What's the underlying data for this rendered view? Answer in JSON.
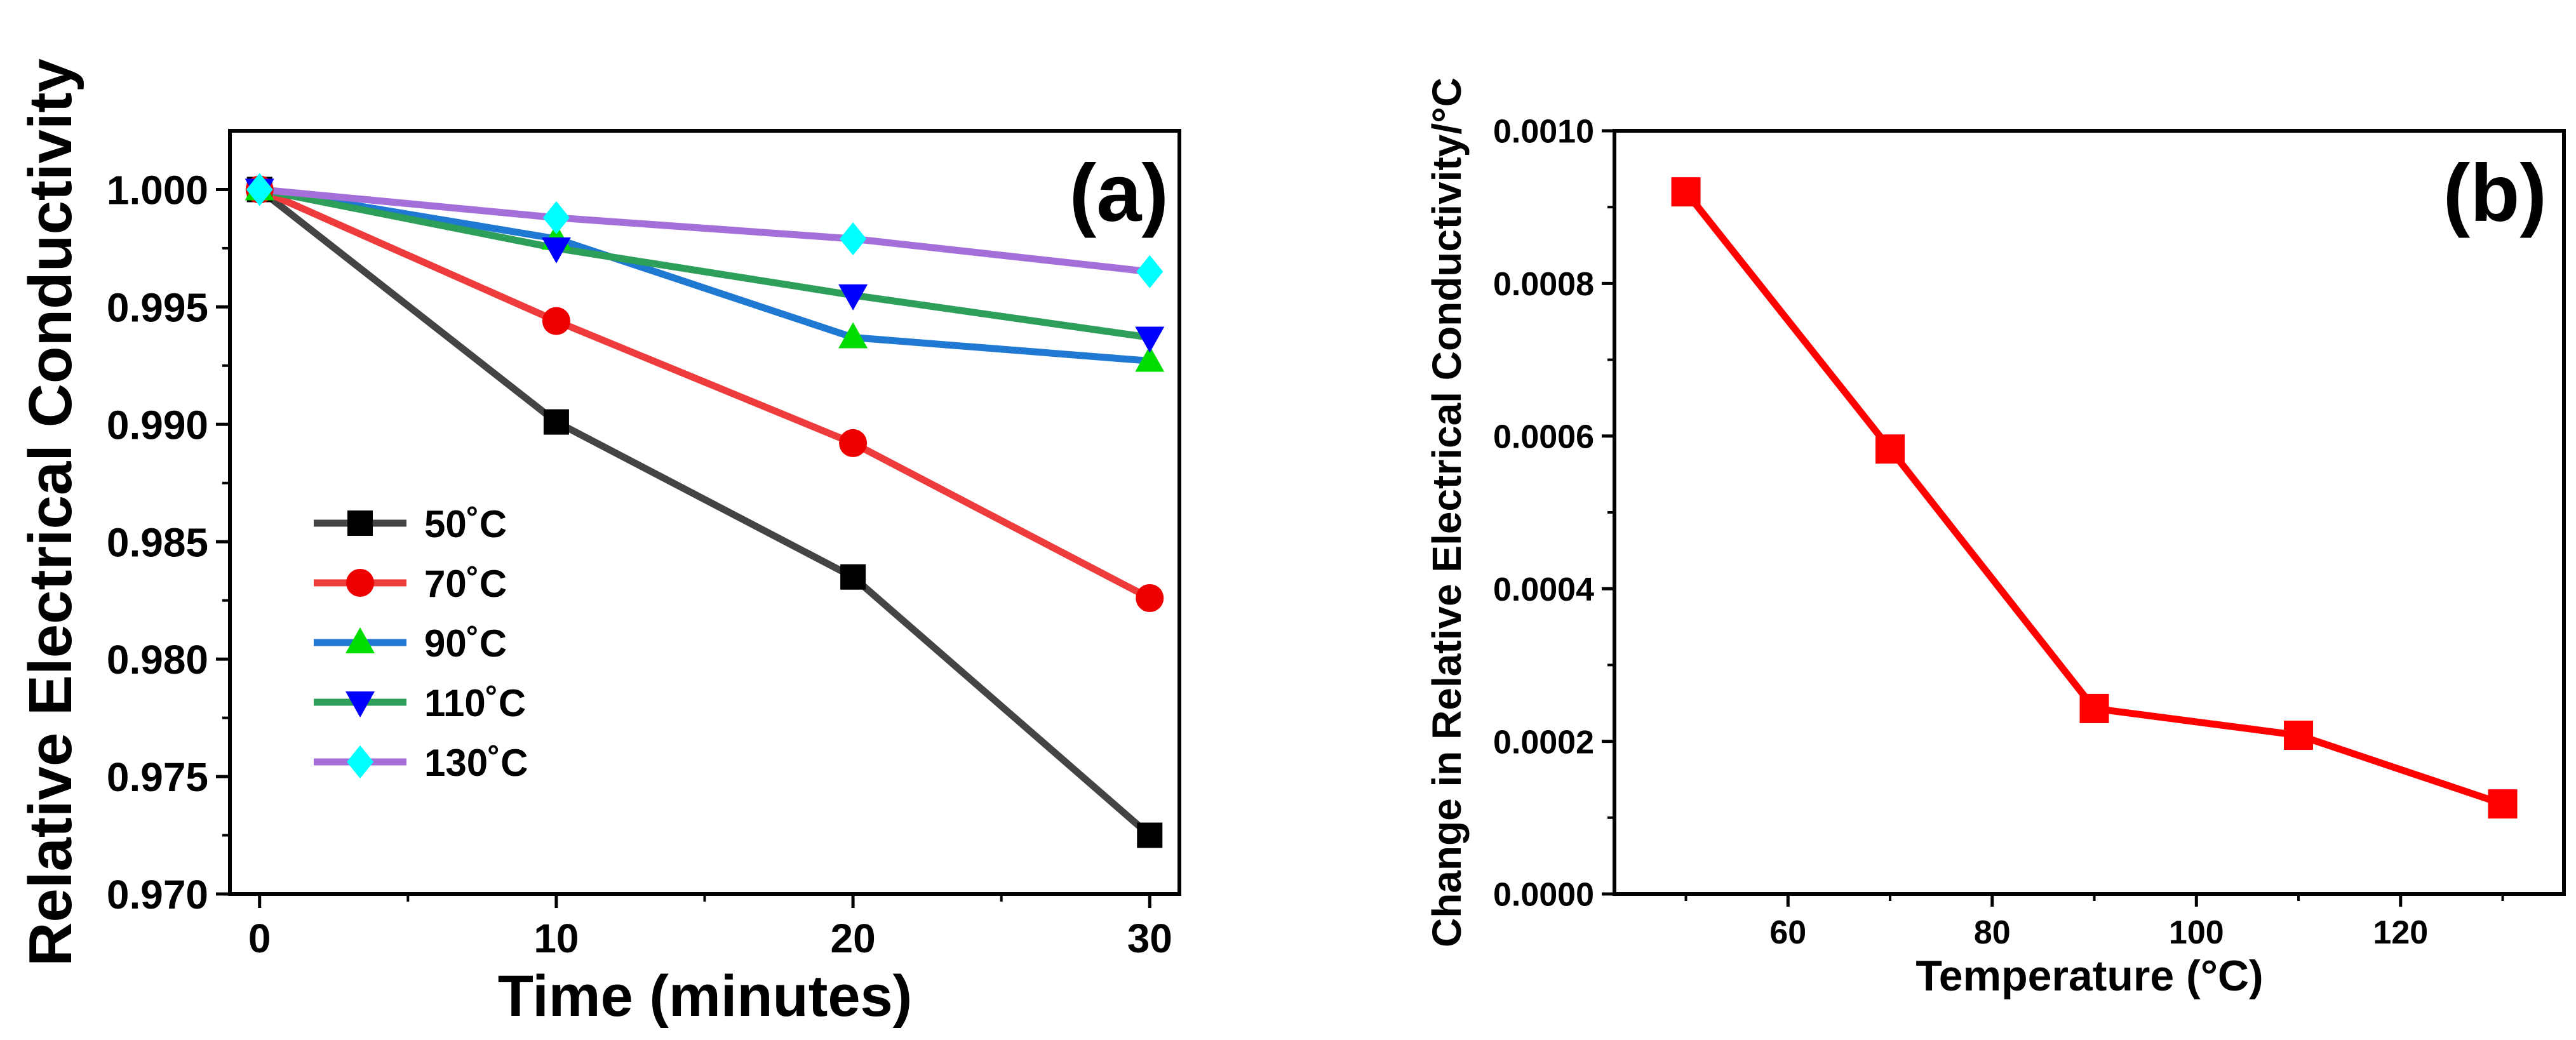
{
  "chart_data": [
    {
      "type": "line",
      "panel_label": "(a)",
      "xlabel": "Time (minutes)",
      "ylabel": "Relative Electrical Conductivity",
      "x": [
        0,
        10,
        20,
        30
      ],
      "xlim": [
        -1,
        31
      ],
      "ylim": [
        0.97,
        1.0025
      ],
      "x_ticks": [
        0,
        10,
        20,
        30
      ],
      "x_tick_labels": [
        "0",
        "10",
        "20",
        "30"
      ],
      "y_ticks": [
        0.97,
        0.975,
        0.98,
        0.985,
        0.99,
        0.995,
        1.0
      ],
      "y_tick_labels": [
        "0.970",
        "0.975",
        "0.980",
        "0.985",
        "0.990",
        "0.995",
        "1.000"
      ],
      "legend_position": "center-left",
      "series": [
        {
          "name": "50˚C",
          "values": [
            1.0,
            0.9901,
            0.9835,
            0.9725
          ],
          "line_color": "#444444",
          "marker": "square",
          "marker_color": "#000000"
        },
        {
          "name": "70˚C",
          "values": [
            1.0,
            0.9944,
            0.9892,
            0.9826
          ],
          "line_color": "#ee3b3b",
          "marker": "circle",
          "marker_color": "#ee0000"
        },
        {
          "name": "90˚C",
          "values": [
            1.0,
            0.9979,
            0.9937,
            0.9927
          ],
          "line_color": "#1f78d1",
          "marker": "triangle-up",
          "marker_color": "#00dd00"
        },
        {
          "name": "110˚C",
          "values": [
            1.0,
            0.9975,
            0.9955,
            0.9937
          ],
          "line_color": "#2e9e5b",
          "marker": "triangle-down",
          "marker_color": "#0000ff"
        },
        {
          "name": "130˚C",
          "values": [
            1.0,
            0.9988,
            0.9979,
            0.9965
          ],
          "line_color": "#a46fd8",
          "marker": "diamond",
          "marker_color": "#00ffff"
        }
      ]
    },
    {
      "type": "line",
      "panel_label": "(b)",
      "xlabel": "Temperature (°C)",
      "ylabel": "Change in Relative Electrical Conductivity/°C",
      "x": [
        50,
        70,
        90,
        110,
        130
      ],
      "xlim": [
        43,
        136
      ],
      "ylim": [
        0.0,
        0.001
      ],
      "x_ticks": [
        60,
        80,
        100,
        120
      ],
      "x_tick_labels": [
        "60",
        "80",
        "100",
        "120"
      ],
      "y_ticks": [
        0.0,
        0.0002,
        0.0004,
        0.0006,
        0.0008,
        0.001
      ],
      "y_tick_labels": [
        "0.0000",
        "0.0002",
        "0.0004",
        "0.0006",
        "0.0008",
        "0.0010"
      ],
      "series": [
        {
          "name": "",
          "values": [
            0.00092,
            0.000583,
            0.000243,
            0.000208,
            0.000118
          ],
          "line_color": "#ff0000",
          "marker": "square",
          "marker_color": "#ff0000"
        }
      ]
    }
  ]
}
